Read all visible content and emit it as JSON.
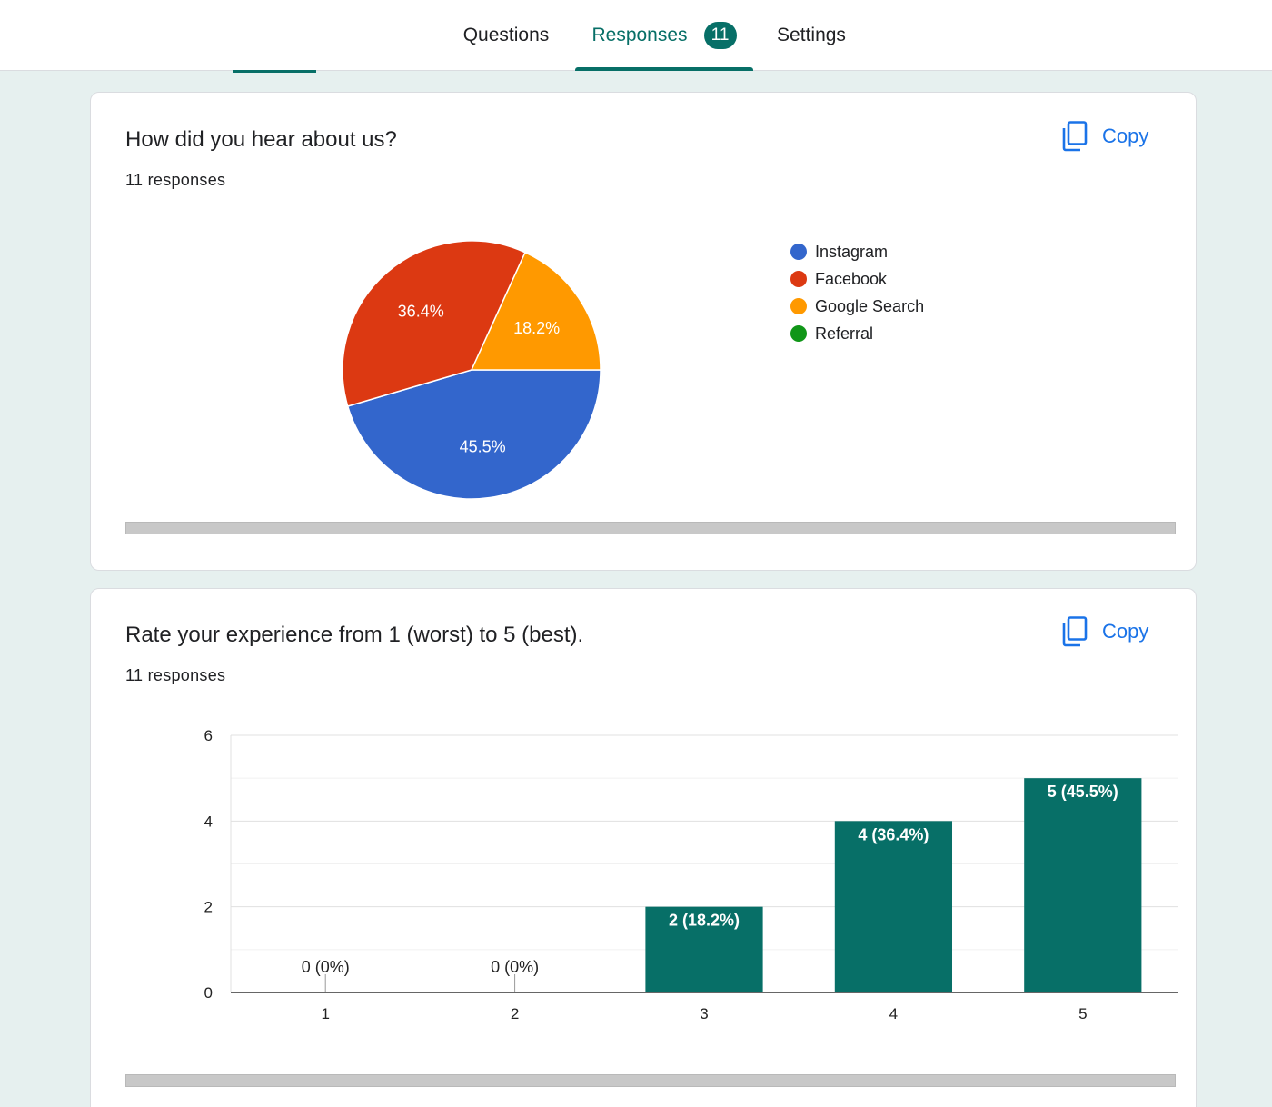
{
  "tabs": [
    {
      "label": "Questions"
    },
    {
      "label": "Responses",
      "badge": "11"
    },
    {
      "label": "Settings"
    }
  ],
  "accent_color": "#076f67",
  "link_color": "#1a73e8",
  "cards": [
    {
      "title": "How did you hear about us?",
      "subtitle": "11 responses",
      "copy_label": "Copy"
    },
    {
      "title": "Rate your experience from 1 (worst) to 5 (best).",
      "subtitle": "11 responses",
      "copy_label": "Copy"
    }
  ],
  "chart_data": [
    {
      "type": "pie",
      "title": "How did you hear about us?",
      "slices": [
        {
          "name": "Instagram",
          "value": 45.5,
          "label": "45.5%",
          "color": "#3366cc"
        },
        {
          "name": "Facebook",
          "value": 36.4,
          "label": "36.4%",
          "color": "#dc3912"
        },
        {
          "name": "Google Search",
          "value": 18.2,
          "label": "18.2%",
          "color": "#ff9900"
        },
        {
          "name": "Referral",
          "value": 0,
          "label": "",
          "color": "#109618"
        }
      ],
      "legend_position": "right"
    },
    {
      "type": "bar",
      "title": "Rate your experience from 1 (worst) to 5 (best).",
      "categories": [
        "1",
        "2",
        "3",
        "4",
        "5"
      ],
      "values": [
        0,
        0,
        2,
        4,
        5
      ],
      "data_labels": [
        "0 (0%)",
        "0 (0%)",
        "2 (18.2%)",
        "4 (36.4%)",
        "5 (45.5%)"
      ],
      "yticks": [
        "0",
        "2",
        "4",
        "6"
      ],
      "ylim": [
        0,
        6
      ],
      "grid": true,
      "bar_color": "#076f67"
    }
  ]
}
